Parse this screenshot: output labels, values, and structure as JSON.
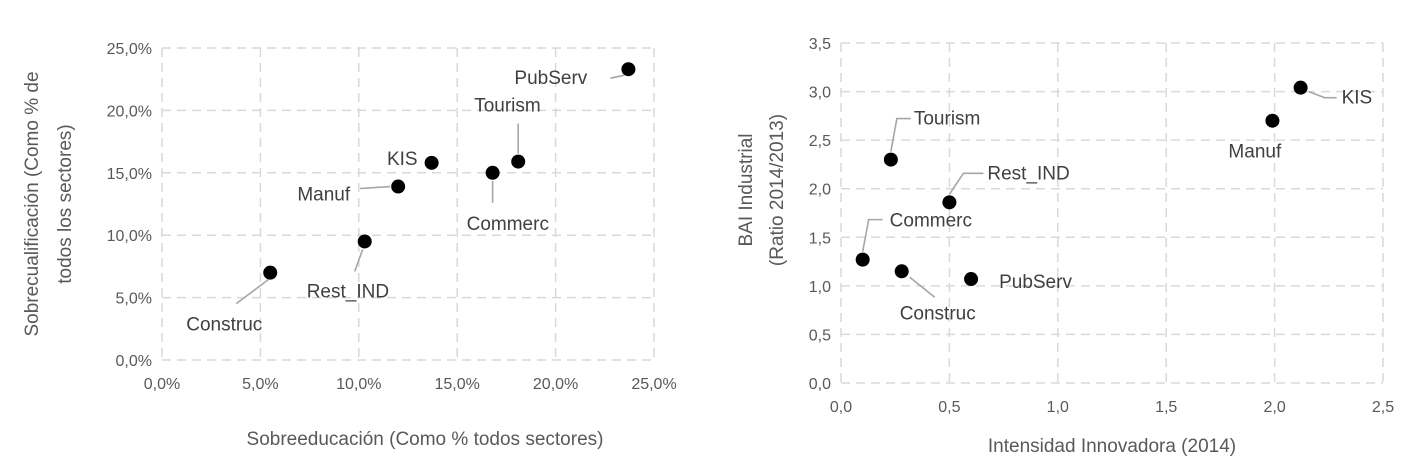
{
  "chart_data": [
    {
      "type": "scatter",
      "xlabel": "Sobreeducación (Como % todos sectores)",
      "ylabel_lines": [
        "Sobrecualificación (Como  % de",
        "todos los sectores)"
      ],
      "xlim": [
        0,
        25
      ],
      "ylim": [
        0,
        25
      ],
      "x_ticks": [
        "0,0%",
        "5,0%",
        "10,0%",
        "15,0%",
        "20,0%",
        "25,0%"
      ],
      "y_ticks": [
        "0,0%",
        "5,0%",
        "10,0%",
        "15,0%",
        "20,0%",
        "25,0%"
      ],
      "grid": true,
      "points": [
        {
          "label": "Construc",
          "x": 5.5,
          "y": 7.0
        },
        {
          "label": "Rest_IND",
          "x": 10.3,
          "y": 9.5
        },
        {
          "label": "Manuf",
          "x": 12.0,
          "y": 13.9
        },
        {
          "label": "KIS",
          "x": 13.7,
          "y": 15.8
        },
        {
          "label": "Commerc",
          "x": 16.8,
          "y": 15.0
        },
        {
          "label": "Tourism",
          "x": 18.1,
          "y": 15.9
        },
        {
          "label": "PubServ",
          "x": 23.7,
          "y": 23.3
        }
      ]
    },
    {
      "type": "scatter",
      "xlabel": "Intensidad Innovadora (2014)",
      "ylabel_lines": [
        "BAI Industrial",
        "(Ratio 2014/2013)"
      ],
      "xlim": [
        0,
        2.5
      ],
      "ylim": [
        0,
        3.5
      ],
      "x_ticks": [
        "0,0",
        "0,5",
        "1,0",
        "1,5",
        "2,0",
        "2,5"
      ],
      "y_ticks": [
        "0,0",
        "0,5",
        "1,0",
        "1,5",
        "2,0",
        "2,5",
        "3,0",
        "3,5"
      ],
      "grid": true,
      "points": [
        {
          "label": "Commerc",
          "x": 0.1,
          "y": 1.27
        },
        {
          "label": "Construc",
          "x": 0.28,
          "y": 1.15
        },
        {
          "label": "Tourism",
          "x": 0.23,
          "y": 2.3
        },
        {
          "label": "Rest_IND",
          "x": 0.5,
          "y": 1.86
        },
        {
          "label": "PubServ",
          "x": 0.6,
          "y": 1.07
        },
        {
          "label": "Manuf",
          "x": 1.99,
          "y": 2.7
        },
        {
          "label": "KIS",
          "x": 2.12,
          "y": 3.04
        }
      ]
    }
  ]
}
